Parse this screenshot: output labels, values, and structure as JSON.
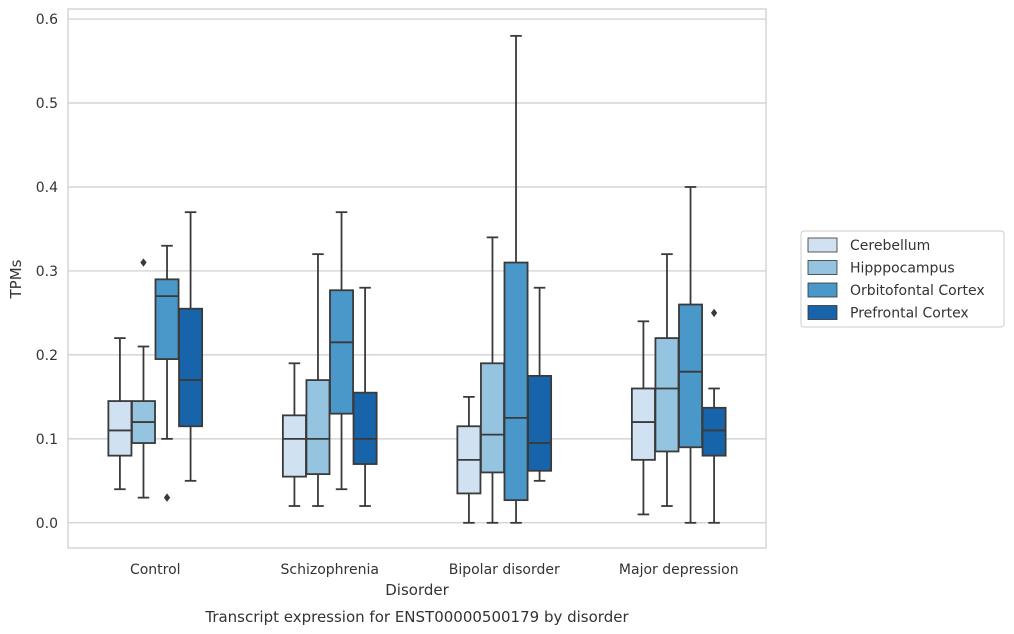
{
  "chart_data": {
    "type": "box",
    "caption": "Transcript expression for ENST00000500179 by disorder",
    "xlabel": "Disorder",
    "ylabel": "TPMs",
    "ylim": [
      -0.03,
      0.612
    ],
    "yticks": [
      "0.0",
      "0.1",
      "0.2",
      "0.3",
      "0.4",
      "0.5",
      "0.6"
    ],
    "grid": "horizontal",
    "legend_position": "right",
    "categories": [
      "Control",
      "Schizophrenia",
      "Bipolar disorder",
      "Major depression"
    ],
    "series": [
      {
        "name": "Cerebellum",
        "color": "#d0e1f2",
        "boxes": [
          {
            "whislo": 0.04,
            "q1": 0.08,
            "med": 0.11,
            "q3": 0.145,
            "whishi": 0.22,
            "fliers": []
          },
          {
            "whislo": 0.02,
            "q1": 0.055,
            "med": 0.1,
            "q3": 0.128,
            "whishi": 0.19,
            "fliers": []
          },
          {
            "whislo": 0.0,
            "q1": 0.035,
            "med": 0.075,
            "q3": 0.115,
            "whishi": 0.15,
            "fliers": []
          },
          {
            "whislo": 0.01,
            "q1": 0.075,
            "med": 0.12,
            "q3": 0.16,
            "whishi": 0.24,
            "fliers": []
          }
        ]
      },
      {
        "name": "Hipppocampus",
        "color": "#94c4df",
        "boxes": [
          {
            "whislo": 0.03,
            "q1": 0.095,
            "med": 0.12,
            "q3": 0.145,
            "whishi": 0.21,
            "fliers": [
              0.31
            ]
          },
          {
            "whislo": 0.02,
            "q1": 0.058,
            "med": 0.1,
            "q3": 0.17,
            "whishi": 0.32,
            "fliers": []
          },
          {
            "whislo": 0.0,
            "q1": 0.06,
            "med": 0.105,
            "q3": 0.19,
            "whishi": 0.34,
            "fliers": []
          },
          {
            "whislo": 0.02,
            "q1": 0.085,
            "med": 0.16,
            "q3": 0.22,
            "whishi": 0.32,
            "fliers": []
          }
        ]
      },
      {
        "name": "Orbitofontal Cortex",
        "color": "#4a98c9",
        "boxes": [
          {
            "whislo": 0.1,
            "q1": 0.195,
            "med": 0.27,
            "q3": 0.29,
            "whishi": 0.33,
            "fliers": [
              0.03
            ]
          },
          {
            "whislo": 0.04,
            "q1": 0.13,
            "med": 0.215,
            "q3": 0.277,
            "whishi": 0.37,
            "fliers": []
          },
          {
            "whislo": 0.0,
            "q1": 0.027,
            "med": 0.125,
            "q3": 0.31,
            "whishi": 0.58,
            "fliers": []
          },
          {
            "whislo": 0.0,
            "q1": 0.09,
            "med": 0.18,
            "q3": 0.26,
            "whishi": 0.4,
            "fliers": []
          }
        ]
      },
      {
        "name": "Prefrontal Cortex",
        "color": "#1764ab",
        "boxes": [
          {
            "whislo": 0.05,
            "q1": 0.115,
            "med": 0.17,
            "q3": 0.255,
            "whishi": 0.37,
            "fliers": []
          },
          {
            "whislo": 0.02,
            "q1": 0.07,
            "med": 0.1,
            "q3": 0.155,
            "whishi": 0.28,
            "fliers": []
          },
          {
            "whislo": 0.05,
            "q1": 0.062,
            "med": 0.095,
            "q3": 0.175,
            "whishi": 0.28,
            "fliers": []
          },
          {
            "whislo": 0.0,
            "q1": 0.08,
            "med": 0.11,
            "q3": 0.137,
            "whishi": 0.16,
            "fliers": [
              0.25
            ]
          }
        ]
      }
    ]
  }
}
